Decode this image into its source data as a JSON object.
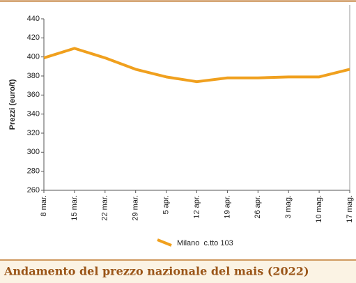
{
  "chart_data": {
    "type": "line",
    "title": "Andamento del prezzo nazionale del mais (2022)",
    "y_label": "Prezzi (euro/t)",
    "categories": [
      "8 mar.",
      "15 mar.",
      "22 mar.",
      "29 mar.",
      "5 apr.",
      "12 apr.",
      "19 apr.",
      "26 apr.",
      "3 mag.",
      "10 mag.",
      "17 mag."
    ],
    "series": [
      {
        "name": "Milano  c.tto 103",
        "color": "#f0a01e",
        "values": [
          399,
          409,
          399,
          387,
          379,
          374,
          378,
          378,
          379,
          379,
          387
        ]
      }
    ],
    "ylim": [
      260,
      440
    ],
    "yticks": [
      260,
      280,
      300,
      320,
      340,
      360,
      380,
      400,
      420,
      440
    ],
    "grid": false
  }
}
